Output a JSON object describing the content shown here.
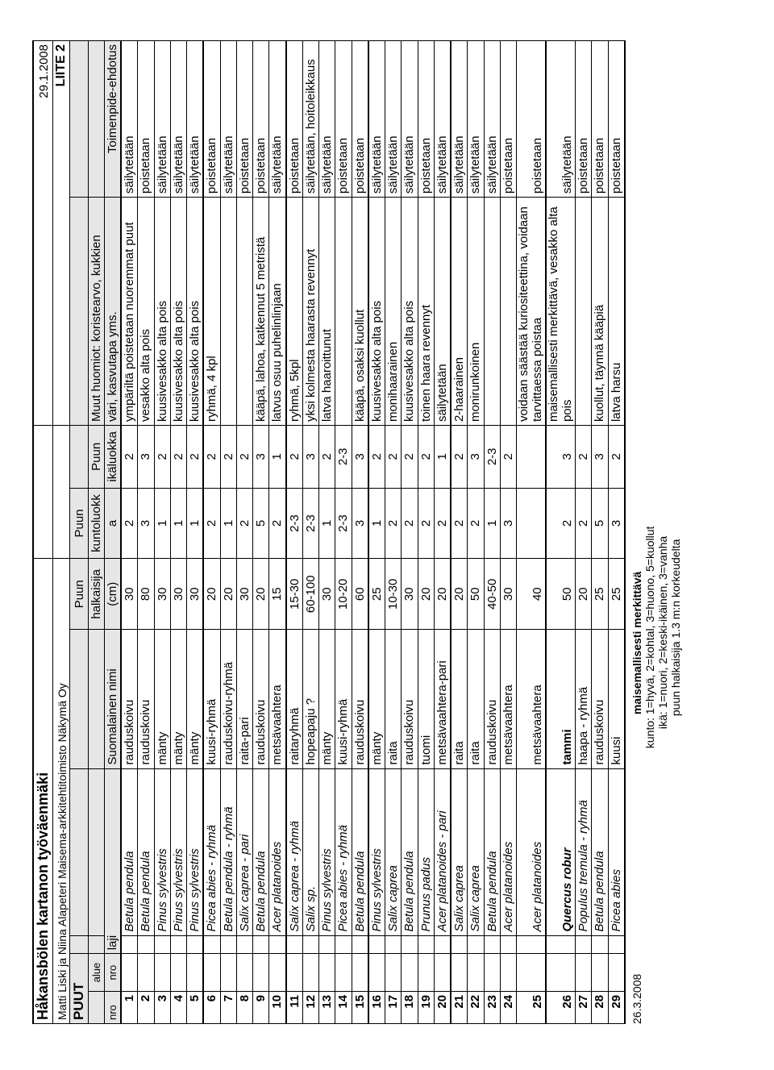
{
  "header": {
    "title": "Håkansbölen kartanon työväenmäki",
    "subtitle": "Matti Liski ja Niina Alapeteri Maisema-arkkitehtitoimisto Näkymä Oy",
    "date": "29.1.2008",
    "liite": "LIITE 2"
  },
  "section": "PUUT",
  "columns": {
    "nro": "nro",
    "alue_nro_1": "alue",
    "alue_nro_2": "nro",
    "laji": "laji",
    "suomalainen": "Suomalainen nimi",
    "halkaisija_1": "Puun",
    "halkaisija_2": "halkaisija",
    "halkaisija_3": "(cm)",
    "kuntoluokka_1": "Puun",
    "kuntoluokka_2": "kuntoluokk",
    "kuntoluokka_3": "a",
    "ikaluokka_1": "Puun",
    "ikaluokka_2": "ikäluokka",
    "huomiot_1": "Muut huomiot: koristearvo, kukkien",
    "huomiot_2": "väri, kasvutapa yms.",
    "toimenpide": "Toimenpide-ehdotus"
  },
  "rows": [
    {
      "g": 0,
      "n": "1",
      "laji": "Betula pendula",
      "fi": "rauduskoivu",
      "d": "30",
      "k": "2",
      "i": "2",
      "h": "ympäriltä poistetaan nuoremmat puut",
      "t": "säilytetään"
    },
    {
      "g": 0,
      "n": "2",
      "laji": "Betula pendula",
      "fi": "rauduskoivu",
      "d": "80",
      "k": "3",
      "i": "3",
      "h": "vesakko alta pois",
      "t": "poistetaan"
    },
    {
      "g": 0,
      "n": "3",
      "laji": "Pinus sylvestris",
      "fi": "mänty",
      "d": "30",
      "k": "1",
      "i": "2",
      "h": "kuusivesakko alta pois",
      "t": "säilytetään"
    },
    {
      "g": 0,
      "n": "4",
      "laji": "Pinus sylvestris",
      "fi": "mänty",
      "d": "30",
      "k": "1",
      "i": "2",
      "h": "kuusivesakko alta pois",
      "t": "säilytetään"
    },
    {
      "g": 0,
      "n": "5",
      "laji": "Pinus sylvestris",
      "fi": "mänty",
      "d": "30",
      "k": "1",
      "i": "2",
      "h": "kuusivesakko alta pois",
      "t": "säilytetään"
    },
    {
      "g": 1,
      "n": "6",
      "laji": "Picea abies - ryhmä",
      "fi": "kuusi-ryhmä",
      "d": "20",
      "k": "2",
      "i": "2",
      "h": "ryhmä, 4 kpl",
      "t": "poistetaan"
    },
    {
      "g": 1,
      "n": "7",
      "laji": "Betula pendula - ryhmä",
      "fi": "rauduskoivu-ryhmä",
      "d": "20",
      "k": "1",
      "i": "2",
      "h": "",
      "t": "säilytetään"
    },
    {
      "g": 1,
      "n": "8",
      "laji": "Salix caprea - pari",
      "fi": "raita-pari",
      "d": "30",
      "k": "2",
      "i": "2",
      "h": "",
      "t": "poistetaan"
    },
    {
      "g": 1,
      "n": "9",
      "laji": "Betula pendula",
      "fi": "rauduskoivu",
      "d": "20",
      "k": "5",
      "i": "3",
      "h": "kääpä, lahoa, katkennut 5 metristä",
      "t": "poistetaan"
    },
    {
      "g": 1,
      "n": "10",
      "laji": "Acer platanoides",
      "fi": "metsävaahtera",
      "d": "15",
      "k": "2",
      "i": "1",
      "h": "latvus osuu puhelinlinjaan",
      "t": "säilytetään"
    },
    {
      "g": 2,
      "n": "11",
      "laji": "Salix caprea - ryhmä",
      "fi": "raitaryhmä",
      "d": "15-30",
      "k": "2-3",
      "i": "2",
      "h": "ryhmä, 5kpl",
      "t": "poistetaan"
    },
    {
      "g": 2,
      "n": "12",
      "laji": "Salix sp.",
      "fi": "hopeapaju ?",
      "d": "60-100",
      "k": "2-3",
      "i": "3",
      "h": "yksi kolmesta haarasta revennyt",
      "t": "säilytetään,  hoitoleikkaus"
    },
    {
      "g": 2,
      "n": "13",
      "laji": "Pinus sylvestris",
      "fi": "mänty",
      "d": "30",
      "k": "1",
      "i": "2",
      "h": "latva haaroittunut",
      "t": "säilytetään"
    },
    {
      "g": 2,
      "n": "14",
      "laji": "Picea abies - ryhmä",
      "fi": "kuusi-ryhmä",
      "d": "10-20",
      "k": "2-3",
      "i": "2-3",
      "h": "",
      "t": "poistetaan"
    },
    {
      "g": 2,
      "n": "15",
      "laji": "Betula pendula",
      "fi": "rauduskoivu",
      "d": "60",
      "k": "3",
      "i": "3",
      "h": "kääpä, osaksi kuollut",
      "t": "poistetaan"
    },
    {
      "g": 3,
      "n": "16",
      "laji": "Pinus sylvestris",
      "fi": "mänty",
      "d": "25",
      "k": "1",
      "i": "2",
      "h": "kuusivesakko alta pois",
      "t": "säilytetään"
    },
    {
      "g": 3,
      "n": "17",
      "laji": "Salix caprea",
      "fi": "raita",
      "d": "10-30",
      "k": "2",
      "i": "2",
      "h": "monihaarainen",
      "t": "säilytetään"
    },
    {
      "g": 3,
      "n": "18",
      "laji": "Betula pendula",
      "fi": "rauduskoivu",
      "d": "30",
      "k": "2",
      "i": "2",
      "h": "kuusivesakko alta pois",
      "t": "säilytetään"
    },
    {
      "g": 3,
      "n": "19",
      "laji": "Prunus padus",
      "fi": "tuomi",
      "d": "20",
      "k": "2",
      "i": "2",
      "h": "toinen haara revennyt",
      "t": "poistetaan"
    },
    {
      "g": 3,
      "n": "20",
      "laji": "Acer platanoides - pari",
      "fi": "metsävaahtera-pari",
      "d": "20",
      "k": "2",
      "i": "1",
      "h": "säilytetään",
      "t": "säilytetään"
    },
    {
      "g": 4,
      "n": "21",
      "laji": "Salix caprea",
      "fi": "raita",
      "d": "20",
      "k": "2",
      "i": "2",
      "h": "2-haarainen",
      "t": "säilytetään"
    },
    {
      "g": 4,
      "n": "22",
      "laji": "Salix caprea",
      "fi": "raita",
      "d": "50",
      "k": "2",
      "i": "3",
      "h": "monirunkoinen",
      "t": "säilytetään"
    },
    {
      "g": 4,
      "n": "23",
      "laji": "Betula pendula",
      "fi": "rauduskoivu",
      "d": "40-50",
      "k": "1",
      "i": "2-3",
      "h": "",
      "t": "säilytetään"
    },
    {
      "g": 4,
      "n": "24",
      "laji": "Acer platanoides",
      "fi": "metsävaahtera",
      "d": "30",
      "k": "3",
      "i": "2",
      "h": "",
      "t": "poistetaan"
    },
    {
      "g": 4,
      "n": "25",
      "laji": "Acer platanoides",
      "fi": "metsävaahtera",
      "d": "40",
      "k": "",
      "i": "",
      "h": "voidaan säästää kuriositeettina, voidaan tarvittaessa poistaa",
      "t": "poistetaan",
      "twoLine": true
    },
    {
      "g": 5,
      "n": "26",
      "laji": "Quercus robur",
      "lajiBold": true,
      "fi": "tammi",
      "fiBold": true,
      "d": "50",
      "k": "2",
      "i": "3",
      "h": "maisemallisesti merkittävä, vesakko alta pois",
      "t": "säilytetään",
      "twoLine": true
    },
    {
      "g": 5,
      "n": "27",
      "laji": "Populus tremula - ryhmä",
      "fi": "haapa - ryhmä",
      "d": "20",
      "k": "2",
      "i": "2",
      "h": "",
      "t": "poistetaan"
    },
    {
      "g": 5,
      "n": "28",
      "laji": "Betula pendula",
      "fi": "rauduskoivu",
      "d": "25",
      "k": "5",
      "i": "3",
      "h": "kuollut, täynnä kääpiä",
      "t": "poistetaan"
    },
    {
      "g": 5,
      "n": "29",
      "laji": "Picea abies",
      "fi": "kuusi",
      "d": "25",
      "k": "3",
      "i": "2",
      "h": "latva harsu",
      "t": "poistetaan"
    }
  ],
  "footer": {
    "date": "26.3.2008",
    "legend_title": "maisemallisesti merkittävä",
    "kunto": "kunto: 1=hyvä, 2=kohtal, 3=huono, 5=kuollut",
    "ika": "ikä: 1=nuori, 2=keski-ikäinen, 3=vanha",
    "halk": "puun halkaisija 1.3 m:n korkeudelta"
  },
  "style": {
    "shade_color": "#e6e6e6",
    "border_color": "#000000",
    "font": "Arial"
  }
}
